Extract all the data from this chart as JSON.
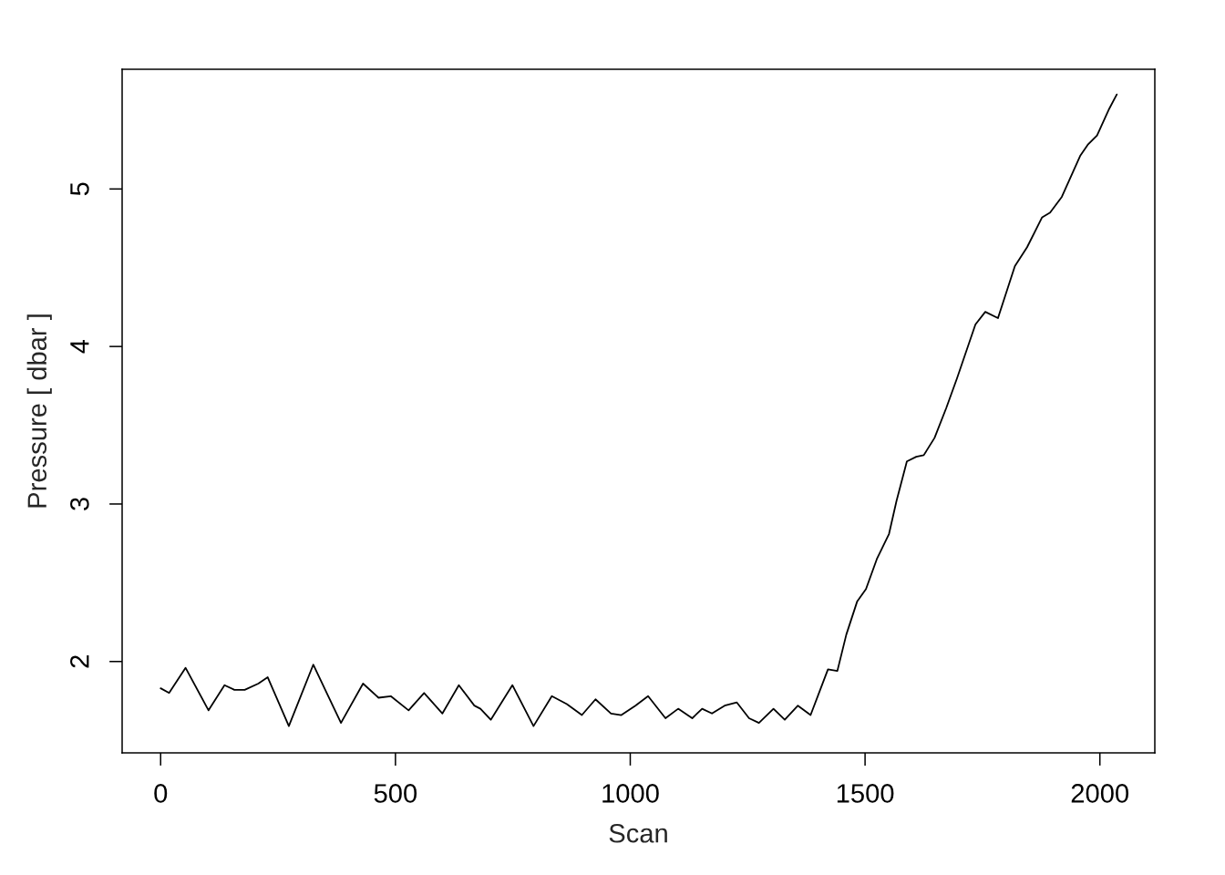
{
  "chart_data": {
    "type": "line",
    "xlabel": "Scan",
    "ylabel": "Pressure [ dbar ]",
    "x": [
      0,
      18,
      53,
      102,
      136,
      157,
      179,
      208,
      228,
      273,
      325,
      384,
      431,
      464,
      490,
      528,
      561,
      600,
      635,
      668,
      681,
      703,
      749,
      794,
      833,
      865,
      897,
      926,
      959,
      981,
      1011,
      1038,
      1075,
      1102,
      1132,
      1153,
      1174,
      1201,
      1227,
      1253,
      1274,
      1305,
      1329,
      1357,
      1384,
      1421,
      1441,
      1460,
      1483,
      1502,
      1525,
      1551,
      1567,
      1589,
      1609,
      1625,
      1648,
      1673,
      1696,
      1735,
      1756,
      1783,
      1819,
      1845,
      1877,
      1894,
      1919,
      1958,
      1974,
      1994,
      2020,
      2036
    ],
    "series": [
      {
        "color": "#000000",
        "values": [
          1.83,
          1.8,
          1.96,
          1.69,
          1.85,
          1.82,
          1.82,
          1.86,
          1.9,
          1.59,
          1.98,
          1.61,
          1.86,
          1.77,
          1.78,
          1.69,
          1.8,
          1.67,
          1.85,
          1.72,
          1.7,
          1.63,
          1.85,
          1.59,
          1.78,
          1.73,
          1.66,
          1.76,
          1.67,
          1.66,
          1.72,
          1.78,
          1.64,
          1.7,
          1.64,
          1.7,
          1.67,
          1.72,
          1.74,
          1.64,
          1.61,
          1.7,
          1.63,
          1.72,
          1.66,
          1.95,
          1.94,
          2.17,
          2.38,
          2.46,
          2.65,
          2.81,
          3.02,
          3.27,
          3.3,
          3.31,
          3.42,
          3.61,
          3.8,
          4.14,
          4.22,
          4.18,
          4.51,
          4.63,
          4.82,
          4.85,
          4.95,
          5.21,
          5.28,
          5.34,
          5.51,
          5.6
        ]
      }
    ],
    "xlim": [
      -82,
      2117
    ],
    "ylim": [
      1.42,
      5.76
    ],
    "xticks": [
      0,
      500,
      1000,
      1500,
      2000
    ],
    "yticks": [
      2,
      3,
      4,
      5
    ],
    "line_style": "solid"
  }
}
